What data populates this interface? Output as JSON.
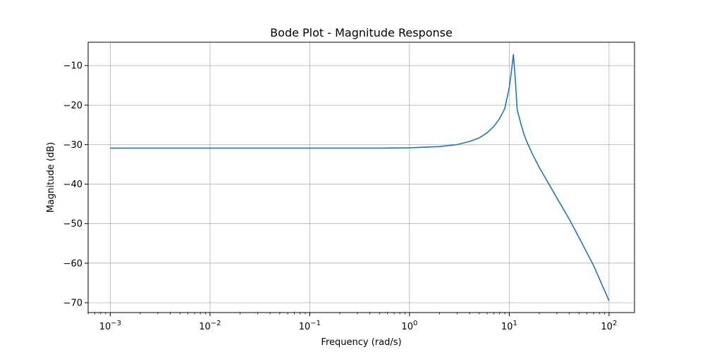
{
  "chart_data": {
    "type": "line",
    "title": "Bode Plot - Magnitude Response",
    "xlabel": "Frequency (rad/s)",
    "ylabel": "Magnitude (dB)",
    "xscale": "log",
    "xlim": [
      0.0006,
      180
    ],
    "ylim": [
      -72.5,
      -4.1
    ],
    "grid": true,
    "x_ticks": [
      {
        "value": 0.001,
        "base": "10",
        "exp": "−3"
      },
      {
        "value": 0.01,
        "base": "10",
        "exp": "−2"
      },
      {
        "value": 0.1,
        "base": "10",
        "exp": "−1"
      },
      {
        "value": 1,
        "base": "10",
        "exp": "0"
      },
      {
        "value": 10,
        "base": "10",
        "exp": "1"
      },
      {
        "value": 100,
        "base": "10",
        "exp": "2"
      }
    ],
    "y_ticks": [
      {
        "value": -10,
        "label": "−10"
      },
      {
        "value": -20,
        "label": "−20"
      },
      {
        "value": -30,
        "label": "−30"
      },
      {
        "value": -40,
        "label": "−40"
      },
      {
        "value": -50,
        "label": "−50"
      },
      {
        "value": -60,
        "label": "−60"
      },
      {
        "value": -70,
        "label": "−70"
      }
    ],
    "series": [
      {
        "color": "#1f77b4",
        "x": [
          0.001,
          0.01,
          0.1,
          0.5,
          1,
          2,
          3,
          4,
          5,
          6,
          7,
          8,
          9,
          10,
          10.5,
          11,
          11.5,
          12,
          13,
          14,
          15,
          17,
          20,
          25,
          30,
          40,
          50,
          70,
          100
        ],
        "y": [
          -30.9,
          -30.9,
          -30.9,
          -30.9,
          -30.8,
          -30.5,
          -30.0,
          -29.2,
          -28.3,
          -27.0,
          -25.4,
          -23.4,
          -20.9,
          -15.6,
          -11.5,
          -7.2,
          -13.5,
          -21.2,
          -24.5,
          -27.3,
          -29.3,
          -32.3,
          -35.8,
          -40.0,
          -43.5,
          -48.9,
          -53.5,
          -60.6,
          -69.5
        ]
      }
    ]
  }
}
